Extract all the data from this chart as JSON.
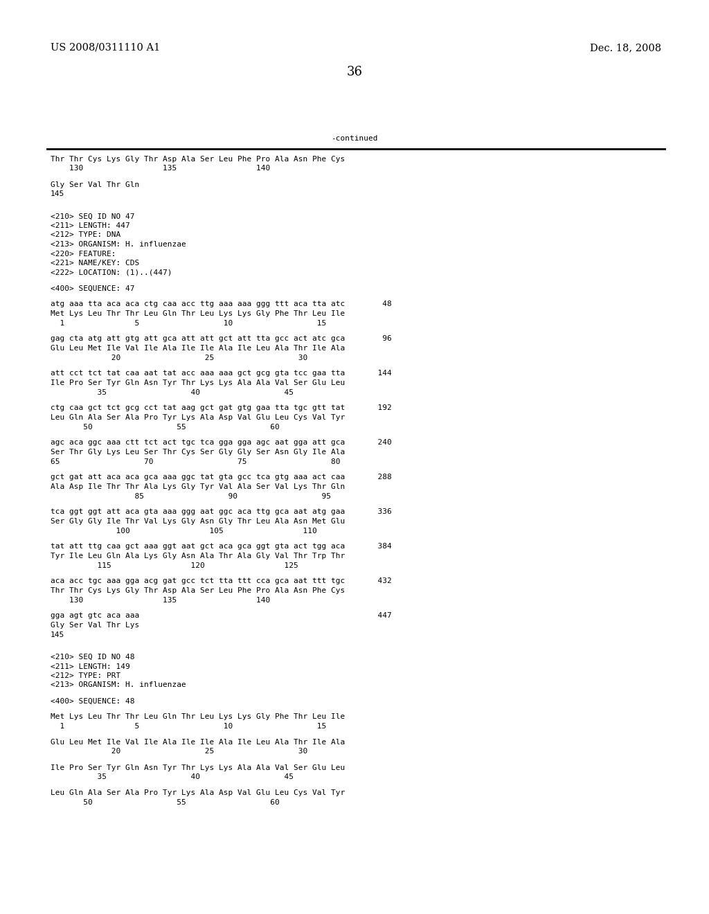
{
  "background_color": "#ffffff",
  "header_left": "US 2008/0311110 A1",
  "header_right": "Dec. 18, 2008",
  "page_number": "36",
  "continued_label": "-continued",
  "font_size_header": 10.5,
  "font_size_body": 8.0,
  "font_size_page": 13,
  "content": [
    [
      "Thr Thr Cys Lys Gly Thr Asp Ala Ser Leu Phe Pro Ala Asn Phe Cys",
      false
    ],
    [
      "    130                 135                 140",
      false
    ],
    [
      "",
      true
    ],
    [
      "Gly Ser Val Thr Gln",
      false
    ],
    [
      "145",
      false
    ],
    [
      "",
      true
    ],
    [
      "",
      true
    ],
    [
      "<210> SEQ ID NO 47",
      false
    ],
    [
      "<211> LENGTH: 447",
      false
    ],
    [
      "<212> TYPE: DNA",
      false
    ],
    [
      "<213> ORGANISM: H. influenzae",
      false
    ],
    [
      "<220> FEATURE:",
      false
    ],
    [
      "<221> NAME/KEY: CDS",
      false
    ],
    [
      "<222> LOCATION: (1)..(447)",
      false
    ],
    [
      "",
      true
    ],
    [
      "<400> SEQUENCE: 47",
      false
    ],
    [
      "",
      true
    ],
    [
      "atg aaa tta aca aca ctg caa acc ttg aaa aaa ggg ttt aca tta atc        48",
      false
    ],
    [
      "Met Lys Leu Thr Thr Leu Gln Thr Leu Lys Lys Gly Phe Thr Leu Ile",
      false
    ],
    [
      "  1               5                  10                  15",
      false
    ],
    [
      "",
      true
    ],
    [
      "gag cta atg att gtg att gca att att gct att tta gcc act atc gca        96",
      false
    ],
    [
      "Glu Leu Met Ile Val Ile Ala Ile Ile Ala Ile Leu Ala Thr Ile Ala",
      false
    ],
    [
      "             20                  25                  30",
      false
    ],
    [
      "",
      true
    ],
    [
      "att cct tct tat caa aat tat acc aaa aaa gct gcg gta tcc gaa tta       144",
      false
    ],
    [
      "Ile Pro Ser Tyr Gln Asn Tyr Thr Lys Lys Ala Ala Val Ser Glu Leu",
      false
    ],
    [
      "          35                  40                  45",
      false
    ],
    [
      "",
      true
    ],
    [
      "ctg caa gct tct gcg cct tat aag gct gat gtg gaa tta tgc gtt tat       192",
      false
    ],
    [
      "Leu Gln Ala Ser Ala Pro Tyr Lys Ala Asp Val Glu Leu Cys Val Tyr",
      false
    ],
    [
      "       50                  55                  60",
      false
    ],
    [
      "",
      true
    ],
    [
      "agc aca ggc aaa ctt tct act tgc tca gga gga agc aat gga att gca       240",
      false
    ],
    [
      "Ser Thr Gly Lys Leu Ser Thr Cys Ser Gly Gly Ser Asn Gly Ile Ala",
      false
    ],
    [
      "65                  70                  75                  80",
      false
    ],
    [
      "",
      true
    ],
    [
      "gct gat att aca aca gca aaa ggc tat gta gcc tca gtg aaa act caa       288",
      false
    ],
    [
      "Ala Asp Ile Thr Thr Ala Lys Gly Tyr Val Ala Ser Val Lys Thr Gln",
      false
    ],
    [
      "                  85                  90                  95",
      false
    ],
    [
      "",
      true
    ],
    [
      "tca ggt ggt att aca gta aaa ggg aat ggc aca ttg gca aat atg gaa       336",
      false
    ],
    [
      "Ser Gly Gly Ile Thr Val Lys Gly Asn Gly Thr Leu Ala Asn Met Glu",
      false
    ],
    [
      "              100                 105                 110",
      false
    ],
    [
      "",
      true
    ],
    [
      "tat att ttg caa gct aaa ggt aat gct aca gca ggt gta act tgg aca       384",
      false
    ],
    [
      "Tyr Ile Leu Gln Ala Lys Gly Asn Ala Thr Ala Gly Val Thr Trp Thr",
      false
    ],
    [
      "          115                 120                 125",
      false
    ],
    [
      "",
      true
    ],
    [
      "aca acc tgc aaa gga acg gat gcc tct tta ttt cca gca aat ttt tgc       432",
      false
    ],
    [
      "Thr Thr Cys Lys Gly Thr Asp Ala Ser Leu Phe Pro Ala Asn Phe Cys",
      false
    ],
    [
      "    130                 135                 140",
      false
    ],
    [
      "",
      true
    ],
    [
      "gga agt gtc aca aaa                                                   447",
      false
    ],
    [
      "Gly Ser Val Thr Lys",
      false
    ],
    [
      "145",
      false
    ],
    [
      "",
      true
    ],
    [
      "",
      true
    ],
    [
      "<210> SEQ ID NO 48",
      false
    ],
    [
      "<211> LENGTH: 149",
      false
    ],
    [
      "<212> TYPE: PRT",
      false
    ],
    [
      "<213> ORGANISM: H. influenzae",
      false
    ],
    [
      "",
      true
    ],
    [
      "<400> SEQUENCE: 48",
      false
    ],
    [
      "",
      true
    ],
    [
      "Met Lys Leu Thr Thr Leu Gln Thr Leu Lys Lys Gly Phe Thr Leu Ile",
      false
    ],
    [
      "  1               5                  10                  15",
      false
    ],
    [
      "",
      true
    ],
    [
      "Glu Leu Met Ile Val Ile Ala Ile Ile Ala Ile Leu Ala Thr Ile Ala",
      false
    ],
    [
      "             20                  25                  30",
      false
    ],
    [
      "",
      true
    ],
    [
      "Ile Pro Ser Tyr Gln Asn Tyr Thr Lys Lys Ala Ala Val Ser Glu Leu",
      false
    ],
    [
      "          35                  40                  45",
      false
    ],
    [
      "",
      true
    ],
    [
      "Leu Gln Ala Ser Ala Pro Tyr Lys Ala Asp Val Glu Leu Cys Val Tyr",
      false
    ],
    [
      "       50                  55                  60",
      false
    ]
  ]
}
